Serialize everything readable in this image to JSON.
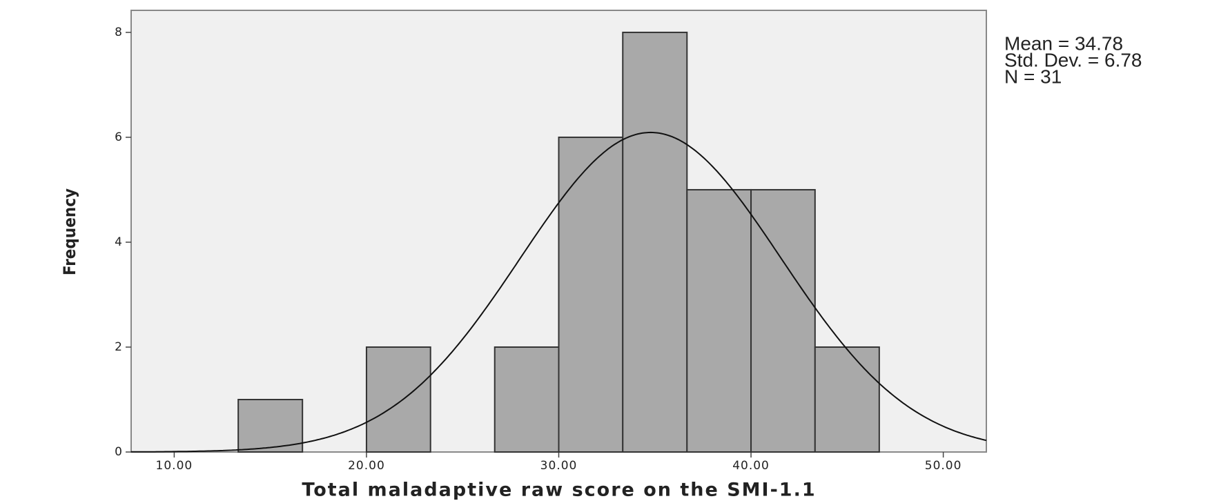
{
  "chart_data": {
    "type": "histogram",
    "x_label": "Total maladaptive raw score on the SMI-1.1",
    "y_label": "Frequency",
    "bins": [
      13.33,
      16.67,
      20,
      23.33,
      26.67,
      30,
      33.33,
      36.67,
      40,
      43.33,
      46.67
    ],
    "values": [
      1,
      0,
      2,
      0,
      2,
      6,
      8,
      5,
      5,
      2
    ],
    "color": "#a9a9a9",
    "xlim": [
      7.76,
      52.24
    ],
    "ylim": [
      0,
      8.42
    ],
    "xticks": [
      {
        "value": 10,
        "label": "10.00"
      },
      {
        "value": 20,
        "label": "20.00"
      },
      {
        "value": 30,
        "label": "30.00"
      },
      {
        "value": 40,
        "label": "40.00"
      },
      {
        "value": 50,
        "label": "50.00"
      }
    ],
    "yticks": [
      0,
      2,
      4,
      6,
      8
    ],
    "normal_curve": {
      "mean": 34.78,
      "sd": 6.78,
      "n": 31
    },
    "annotations": [
      "Mean = 34.78",
      "Std. Dev. = 6.78",
      "N = 31"
    ]
  }
}
